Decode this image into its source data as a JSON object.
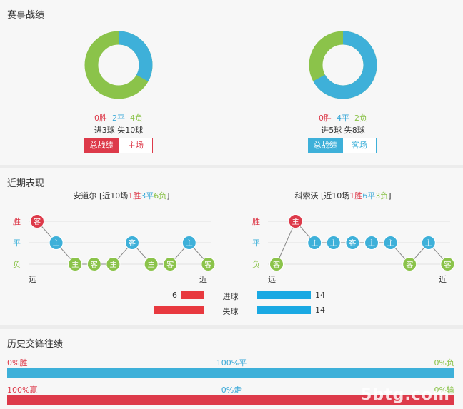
{
  "record": {
    "title": "赛事战绩",
    "left": {
      "win": "0胜",
      "draw": "2平",
      "loss": "4负",
      "goals": "进3球 失10球",
      "tab_all": "总战绩",
      "tab_side": "主场",
      "donut": {
        "blue_fraction": 0.33,
        "colors": {
          "blue": "#3eb0d9",
          "green": "#8bc34a"
        }
      }
    },
    "right": {
      "win": "0胜",
      "draw": "4平",
      "loss": "2负",
      "goals": "进5球 失8球",
      "tab_all": "总战绩",
      "tab_side": "客场",
      "donut": {
        "blue_fraction": 0.67,
        "colors": {
          "blue": "#3eb0d9",
          "green": "#8bc34a"
        }
      }
    }
  },
  "recent": {
    "title": "近期表现",
    "left": {
      "caption_pre": "安道尔 [近10场",
      "w": "1胜",
      "d": "3平",
      "l": "6负",
      "caption_post": "]",
      "y_labels": [
        "胜",
        "平",
        "负"
      ],
      "far": "远",
      "near": "近",
      "games": [
        {
          "venue": "客",
          "result": "W"
        },
        {
          "venue": "主",
          "result": "D"
        },
        {
          "venue": "主",
          "result": "L"
        },
        {
          "venue": "客",
          "result": "L"
        },
        {
          "venue": "主",
          "result": "L"
        },
        {
          "venue": "客",
          "result": "D"
        },
        {
          "venue": "主",
          "result": "L"
        },
        {
          "venue": "客",
          "result": "L"
        },
        {
          "venue": "主",
          "result": "D"
        },
        {
          "venue": "客",
          "result": "L"
        }
      ]
    },
    "right": {
      "caption_pre": "科索沃 [近10场",
      "w": "1胜",
      "d": "6平",
      "l": "3负",
      "caption_post": "]",
      "y_labels": [
        "胜",
        "平",
        "负"
      ],
      "far": "远",
      "near": "近",
      "games": [
        {
          "venue": "客",
          "result": "L"
        },
        {
          "venue": "主",
          "result": "W"
        },
        {
          "venue": "主",
          "result": "D"
        },
        {
          "venue": "主",
          "result": "D"
        },
        {
          "venue": "客",
          "result": "D"
        },
        {
          "venue": "主",
          "result": "D"
        },
        {
          "venue": "主",
          "result": "D"
        },
        {
          "venue": "客",
          "result": "L"
        },
        {
          "venue": "主",
          "result": "D"
        },
        {
          "venue": "客",
          "result": "L"
        }
      ]
    },
    "goals": {
      "scored_label": "进球",
      "conceded_label": "失球",
      "left_scored": 6,
      "left_conceded": 13,
      "right_scored": 14,
      "right_conceded": 14
    },
    "colors": {
      "W": "#dd3a4a",
      "D": "#3eb0d9",
      "L": "#8bc34a"
    }
  },
  "history": {
    "title": "历史交锋往绩",
    "row1": {
      "left": "0%胜",
      "mid": "100%平",
      "right": "0%负",
      "fill_fraction": 1.0
    },
    "row2": {
      "left": "100%赢",
      "mid": "0%走",
      "right": "0%输",
      "fill_fraction": 1.0
    }
  },
  "watermark": "5btg.com"
}
